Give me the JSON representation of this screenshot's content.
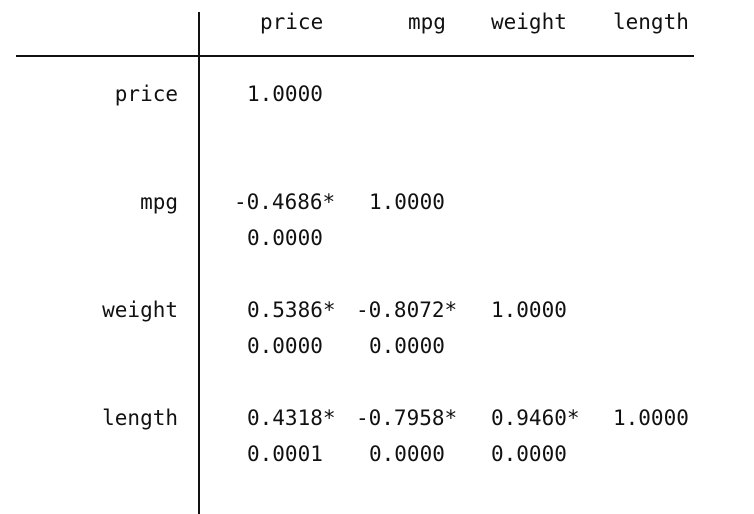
{
  "columns": [
    "price",
    "mpg",
    "weight",
    "length"
  ],
  "rows": [
    {
      "label": "price",
      "coef": [
        "1.0000",
        "",
        "",
        ""
      ],
      "pval": [
        "",
        "",
        "",
        ""
      ]
    },
    {
      "label": "mpg",
      "coef": [
        "-0.4686*",
        "1.0000",
        "",
        ""
      ],
      "pval": [
        "0.0000",
        "",
        "",
        ""
      ]
    },
    {
      "label": "weight",
      "coef": [
        "0.5386*",
        "-0.8072*",
        "1.0000",
        ""
      ],
      "pval": [
        "0.0000",
        "0.0000",
        "",
        ""
      ]
    },
    {
      "label": "length",
      "coef": [
        "0.4318*",
        "-0.7958*",
        "0.9460*",
        "1.0000"
      ],
      "pval": [
        "0.0001",
        "0.0000",
        "0.0000",
        ""
      ]
    }
  ]
}
